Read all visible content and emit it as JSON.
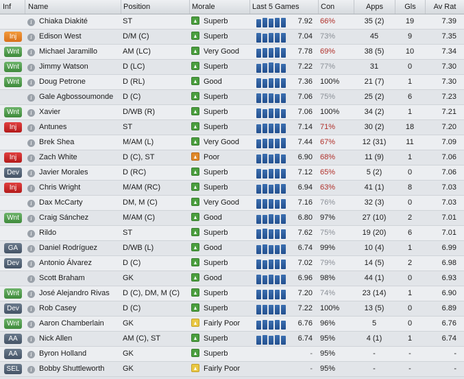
{
  "headers": {
    "inf": "Inf",
    "name": "Name",
    "position": "Position",
    "morale": "Morale",
    "last5": "Last 5 Games",
    "con": "Con",
    "apps": "Apps",
    "gls": "Gls",
    "avrat": "Av Rat"
  },
  "players": [
    {
      "inf": "",
      "badge": "",
      "name": "Chiaka Diakité",
      "position": "ST",
      "morale": "Superb",
      "morale_color": "green",
      "last5_rating": "7.92",
      "con": "66%",
      "con_color": "red",
      "apps": "35 (2)",
      "gls": "19",
      "avrat": "7.39",
      "form": [
        0.75,
        0.85,
        0.8,
        0.9,
        0.85
      ]
    },
    {
      "inf": "Inj",
      "badge": "injo",
      "name": "Edison West",
      "position": "D/M (C)",
      "morale": "Superb",
      "morale_color": "green",
      "last5_rating": "7.04",
      "con": "73%",
      "con_color": "grey",
      "apps": "45",
      "gls": "9",
      "avrat": "7.35",
      "form": [
        0.85,
        0.8,
        0.9,
        0.85,
        0.85
      ]
    },
    {
      "inf": "Wnt",
      "badge": "wnt",
      "name": "Michael Jaramillo",
      "position": "AM (LC)",
      "morale": "Very Good",
      "morale_color": "green",
      "last5_rating": "7.78",
      "con": "69%",
      "con_color": "red",
      "apps": "38 (5)",
      "gls": "10",
      "avrat": "7.34",
      "form": [
        0.8,
        0.9,
        0.85,
        0.95,
        0.85
      ]
    },
    {
      "inf": "Wnt",
      "badge": "wnt",
      "name": "Jimmy Watson",
      "position": "D (LC)",
      "morale": "Superb",
      "morale_color": "green",
      "last5_rating": "7.22",
      "con": "77%",
      "con_color": "grey",
      "apps": "31",
      "gls": "0",
      "avrat": "7.30",
      "form": [
        0.8,
        0.85,
        0.95,
        0.85,
        0.8
      ]
    },
    {
      "inf": "Wnt",
      "badge": "wnt",
      "name": "Doug Petrone",
      "position": "D (RL)",
      "morale": "Good",
      "morale_color": "green",
      "last5_rating": "7.36",
      "con": "100%",
      "con_color": "black",
      "apps": "21 (7)",
      "gls": "1",
      "avrat": "7.30",
      "form": [
        0.85,
        0.8,
        0.9,
        0.85,
        0.9
      ]
    },
    {
      "inf": "",
      "badge": "",
      "name": "Gale Agbossoumonde",
      "position": "D (C)",
      "morale": "Superb",
      "morale_color": "green",
      "last5_rating": "7.06",
      "con": "75%",
      "con_color": "grey",
      "apps": "25 (2)",
      "gls": "6",
      "avrat": "7.23",
      "form": [
        0.85,
        0.9,
        0.85,
        0.8,
        0.85
      ]
    },
    {
      "inf": "Wnt",
      "badge": "wnt",
      "name": "Xavier",
      "position": "D/WB (R)",
      "morale": "Superb",
      "morale_color": "green",
      "last5_rating": "7.06",
      "con": "100%",
      "con_color": "black",
      "apps": "34 (2)",
      "gls": "1",
      "avrat": "7.21",
      "form": [
        0.85,
        0.8,
        0.85,
        0.9,
        0.8
      ]
    },
    {
      "inf": "Inj",
      "badge": "inj",
      "name": "Antunes",
      "position": "ST",
      "morale": "Superb",
      "morale_color": "green",
      "last5_rating": "7.14",
      "con": "71%",
      "con_color": "red",
      "apps": "30 (2)",
      "gls": "18",
      "avrat": "7.20",
      "form": [
        0.8,
        0.9,
        0.85,
        0.85,
        0.85
      ]
    },
    {
      "inf": "",
      "badge": "",
      "name": "Brek Shea",
      "position": "M/AM (L)",
      "morale": "Very Good",
      "morale_color": "green",
      "last5_rating": "7.44",
      "con": "67%",
      "con_color": "red",
      "apps": "12 (31)",
      "gls": "11",
      "avrat": "7.09",
      "form": [
        0.8,
        0.85,
        0.9,
        0.85,
        0.95
      ]
    },
    {
      "inf": "Inj",
      "badge": "inj",
      "name": "Zach White",
      "position": "D (C), ST",
      "morale": "Poor",
      "morale_color": "orange",
      "last5_rating": "6.90",
      "con": "68%",
      "con_color": "red",
      "apps": "11 (9)",
      "gls": "1",
      "avrat": "7.06",
      "form": [
        0.8,
        0.85,
        0.8,
        0.85,
        0.8
      ]
    },
    {
      "inf": "Dev",
      "badge": "dev",
      "name": "Javier Morales",
      "position": "D (RC)",
      "morale": "Superb",
      "morale_color": "green",
      "last5_rating": "7.12",
      "con": "65%",
      "con_color": "red",
      "apps": "5 (2)",
      "gls": "0",
      "avrat": "7.06",
      "form": [
        0.85,
        0.8,
        0.9,
        0.85,
        0.85
      ]
    },
    {
      "inf": "Inj",
      "badge": "inj",
      "name": "Chris Wright",
      "position": "M/AM (RC)",
      "morale": "Superb",
      "morale_color": "green",
      "last5_rating": "6.94",
      "con": "63%",
      "con_color": "red",
      "apps": "41 (1)",
      "gls": "8",
      "avrat": "7.03",
      "form": [
        0.8,
        0.85,
        0.8,
        0.85,
        0.85
      ]
    },
    {
      "inf": "",
      "badge": "",
      "name": "Dax McCarty",
      "position": "DM, M (C)",
      "morale": "Very Good",
      "morale_color": "green",
      "last5_rating": "7.16",
      "con": "76%",
      "con_color": "grey",
      "apps": "32 (3)",
      "gls": "0",
      "avrat": "7.03",
      "form": [
        0.85,
        0.9,
        0.85,
        0.8,
        0.85
      ]
    },
    {
      "inf": "Wnt",
      "badge": "wnt",
      "name": "Craig Sánchez",
      "position": "M/AM (C)",
      "morale": "Good",
      "morale_color": "green",
      "last5_rating": "6.80",
      "con": "97%",
      "con_color": "black",
      "apps": "27 (10)",
      "gls": "2",
      "avrat": "7.01",
      "form": [
        0.8,
        0.8,
        0.85,
        0.8,
        0.85
      ]
    },
    {
      "inf": "",
      "badge": "",
      "name": "Rildo",
      "position": "ST",
      "morale": "Superb",
      "morale_color": "green",
      "last5_rating": "7.62",
      "con": "75%",
      "con_color": "grey",
      "apps": "19 (20)",
      "gls": "6",
      "avrat": "7.01",
      "form": [
        0.85,
        0.95,
        0.85,
        0.9,
        0.85
      ]
    },
    {
      "inf": "GA",
      "badge": "ga",
      "name": "Daniel Rodríguez",
      "position": "D/WB (L)",
      "morale": "Good",
      "morale_color": "green",
      "last5_rating": "6.74",
      "con": "99%",
      "con_color": "black",
      "apps": "10 (4)",
      "gls": "1",
      "avrat": "6.99",
      "form": [
        0.8,
        0.85,
        0.8,
        0.8,
        0.85
      ]
    },
    {
      "inf": "Dev",
      "badge": "dev",
      "name": "Antonio Álvarez",
      "position": "D (C)",
      "morale": "Superb",
      "morale_color": "green",
      "last5_rating": "7.02",
      "con": "79%",
      "con_color": "grey",
      "apps": "14 (5)",
      "gls": "2",
      "avrat": "6.98",
      "form": [
        0.85,
        0.8,
        0.85,
        0.9,
        0.85
      ]
    },
    {
      "inf": "",
      "badge": "",
      "name": "Scott Braham",
      "position": "GK",
      "morale": "Good",
      "morale_color": "green",
      "last5_rating": "6.96",
      "con": "98%",
      "con_color": "black",
      "apps": "44 (1)",
      "gls": "0",
      "avrat": "6.93",
      "form": [
        0.85,
        0.8,
        0.85,
        0.8,
        0.85
      ]
    },
    {
      "inf": "Wnt",
      "badge": "wnt",
      "name": "José Alejandro Rivas",
      "position": "D (C), DM, M (C)",
      "morale": "Superb",
      "morale_color": "green",
      "last5_rating": "7.20",
      "con": "74%",
      "con_color": "grey",
      "apps": "23 (14)",
      "gls": "1",
      "avrat": "6.90",
      "form": [
        0.85,
        0.9,
        0.85,
        0.85,
        0.85
      ]
    },
    {
      "inf": "Dev",
      "badge": "dev",
      "name": "Rob Casey",
      "position": "D (C)",
      "morale": "Superb",
      "morale_color": "green",
      "last5_rating": "7.22",
      "con": "100%",
      "con_color": "black",
      "apps": "13 (5)",
      "gls": "0",
      "avrat": "6.89",
      "form": [
        0.85,
        0.9,
        0.85,
        0.9,
        0.85
      ]
    },
    {
      "inf": "Wnt",
      "badge": "wnt",
      "name": "Aaron Chamberlain",
      "position": "GK",
      "morale": "Fairly Poor",
      "morale_color": "yellow",
      "last5_rating": "6.76",
      "con": "96%",
      "con_color": "black",
      "apps": "5",
      "gls": "0",
      "avrat": "6.76",
      "form": [
        0.8,
        0.85,
        0.8,
        0.85,
        0.8
      ]
    },
    {
      "inf": "AA",
      "badge": "aa",
      "name": "Nick Allen",
      "position": "AM (C), ST",
      "morale": "Superb",
      "morale_color": "green",
      "last5_rating": "6.74",
      "con": "95%",
      "con_color": "black",
      "apps": "4 (1)",
      "gls": "1",
      "avrat": "6.74",
      "form": [
        0.8,
        0.85,
        0.8,
        0.85,
        0.8
      ]
    },
    {
      "inf": "AA",
      "badge": "aa",
      "name": "Byron Holland",
      "position": "GK",
      "morale": "Superb",
      "morale_color": "green",
      "last5_rating": "-",
      "con": "95%",
      "con_color": "black",
      "apps": "-",
      "gls": "-",
      "avrat": "-",
      "form": []
    },
    {
      "inf": "SEL",
      "badge": "sel",
      "name": "Bobby Shuttleworth",
      "position": "GK",
      "morale": "Fairly Poor",
      "morale_color": "yellow",
      "last5_rating": "-",
      "con": "95%",
      "con_color": "black",
      "apps": "-",
      "gls": "-",
      "avrat": "-",
      "form": []
    }
  ]
}
